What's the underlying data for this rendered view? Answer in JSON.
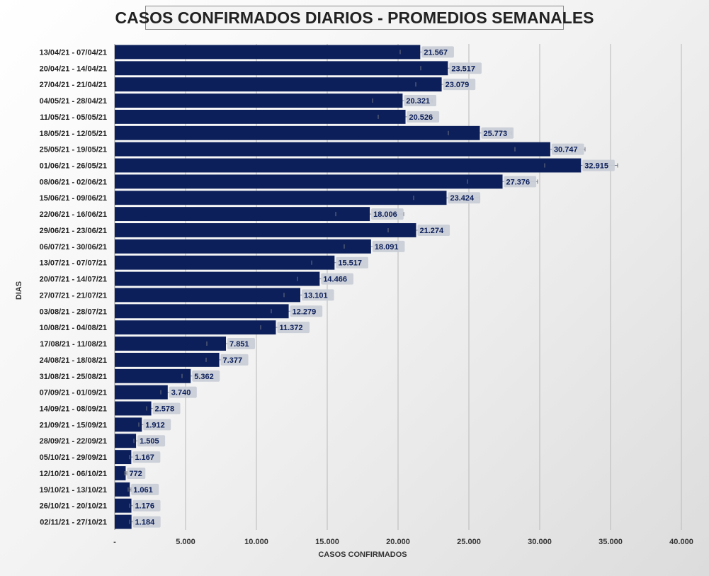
{
  "chart_data": {
    "type": "bar",
    "orientation": "horizontal",
    "title": "CASOS CONFIRMADOS DIARIOS - PROMEDIOS SEMANALES",
    "xlabel": "CASOS CONFIRMADOS",
    "ylabel": "DIAS",
    "xlim": [
      0,
      40000
    ],
    "x_ticks": [
      0,
      5000,
      10000,
      15000,
      20000,
      25000,
      30000,
      35000,
      40000
    ],
    "x_tick_labels": [
      "-",
      "5.000",
      "10.000",
      "15.000",
      "20.000",
      "25.000",
      "30.000",
      "35.000",
      "40.000"
    ],
    "grid": "vertical",
    "bar_color": "#0c1f5a",
    "label_bg_color": "#c9cdd6",
    "categories": [
      "13/04/21 - 07/04/21",
      "20/04/21 - 14/04/21",
      "27/04/21 - 21/04/21",
      "04/05/21 - 28/04/21",
      "11/05/21 - 05/05/21",
      "18/05/21 - 12/05/21",
      "25/05/21 - 19/05/21",
      "01/06/21 - 26/05/21",
      "08/06/21 - 02/06/21",
      "15/06/21 - 09/06/21",
      "22/06/21 - 16/06/21",
      "29/06/21 - 23/06/21",
      "06/07/21 - 30/06/21",
      "13/07/21 - 07/07/21",
      "20/07/21 - 14/07/21",
      "27/07/21 - 21/07/21",
      "03/08/21 - 28/07/21",
      "10/08/21 - 04/08/21",
      "17/08/21 - 11/08/21",
      "24/08/21 - 18/08/21",
      "31/08/21 - 25/08/21",
      "07/09/21 - 01/09/21",
      "14/09/21 - 08/09/21",
      "21/09/21 - 15/09/21",
      "28/09/21 - 22/09/21",
      "05/10/21 - 29/09/21",
      "12/10/21 - 06/10/21",
      "19/10/21 - 13/10/21",
      "26/10/21 - 20/10/21",
      "02/11/21 - 27/10/21"
    ],
    "values": [
      21567,
      23517,
      23079,
      20321,
      20526,
      25773,
      30747,
      32915,
      27376,
      23424,
      18006,
      21274,
      18091,
      15517,
      14466,
      13101,
      12279,
      11372,
      7851,
      7377,
      5362,
      3740,
      2578,
      1912,
      1505,
      1167,
      772,
      1061,
      1176,
      1184
    ],
    "value_labels": [
      "21.567",
      "23.517",
      "23.079",
      "20.321",
      "20.526",
      "25.773",
      "30.747",
      "32.915",
      "27.376",
      "23.424",
      "18.006",
      "21.274",
      "18.091",
      "15.517",
      "14.466",
      "13.101",
      "12.279",
      "11.372",
      "7.851",
      "7.377",
      "5.362",
      "3.740",
      "2.578",
      "1.912",
      "1.505",
      "1.167",
      "772",
      "1.061",
      "1.176",
      "1.184"
    ],
    "error_bars": [
      [
        20150,
        22950
      ],
      [
        21600,
        25450
      ],
      [
        21250,
        24900
      ],
      [
        18200,
        22400
      ],
      [
        18600,
        22450
      ],
      [
        23550,
        28000
      ],
      [
        28250,
        33200
      ],
      [
        30350,
        35500
      ],
      [
        24900,
        29850
      ],
      [
        21100,
        25750
      ],
      [
        15600,
        20400
      ],
      [
        19300,
        23250
      ],
      [
        16200,
        19950
      ],
      [
        13900,
        17150
      ],
      [
        12900,
        16050
      ],
      [
        11950,
        14250
      ],
      [
        11050,
        13500
      ],
      [
        10300,
        12450
      ],
      [
        6500,
        9200
      ],
      [
        6450,
        8300
      ],
      [
        4750,
        5950
      ],
      [
        3250,
        4250
      ],
      [
        2250,
        2900
      ],
      [
        1700,
        2100
      ],
      [
        1350,
        1650
      ],
      [
        1050,
        1300
      ],
      [
        700,
        850
      ],
      [
        950,
        1150
      ],
      [
        1050,
        1300
      ],
      [
        1050,
        1300
      ]
    ]
  }
}
